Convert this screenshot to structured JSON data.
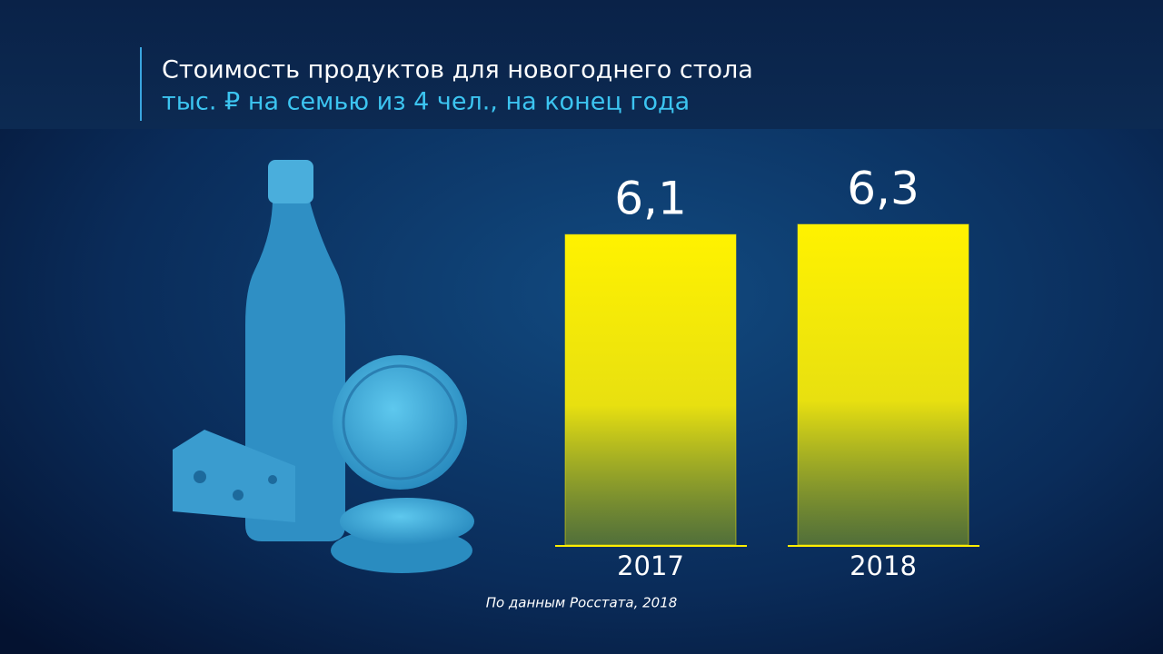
{
  "chart_data": {
    "type": "bar",
    "title": "Стоимость продуктов для новогоднего стола",
    "subtitle": "тыс. ₽ на семью из 4 чел., на конец года",
    "categories": [
      "2017",
      "2018"
    ],
    "values": [
      6.1,
      6.3
    ],
    "value_labels": [
      "6,1",
      "6,3"
    ],
    "color": "#ffee00",
    "source": "По данным Росстата, 2018"
  }
}
